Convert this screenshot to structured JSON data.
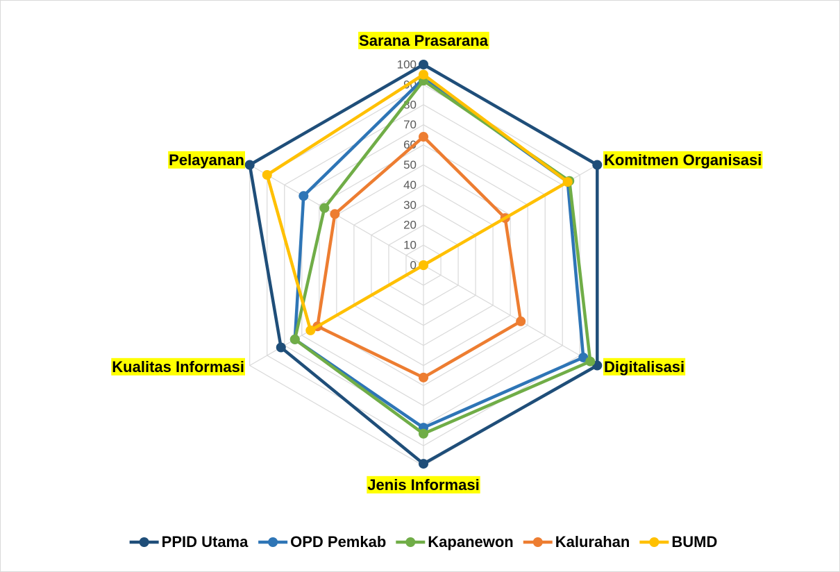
{
  "chart_data": {
    "type": "radar",
    "categories": [
      "Sarana Prasarana",
      "Komitmen Organisasi",
      "Digitalisasi",
      "Jenis Informasi",
      "Kualitas Informasi",
      "Pelayanan"
    ],
    "series": [
      {
        "name": "PPID Utama",
        "color": "#1f4e79",
        "values": [
          100,
          100,
          100,
          99,
          82,
          100
        ]
      },
      {
        "name": "OPD Pemkab",
        "color": "#2e75b6",
        "values": [
          93,
          83,
          92,
          81,
          74,
          69
        ]
      },
      {
        "name": "Kapanewon",
        "color": "#70ad47",
        "values": [
          92,
          84,
          96,
          84,
          74,
          57
        ]
      },
      {
        "name": "Kalurahan",
        "color": "#ed7d31",
        "values": [
          64,
          47,
          56,
          56,
          61,
          51
        ]
      },
      {
        "name": "BUMD",
        "color": "#ffc000",
        "values": [
          95,
          83,
          0,
          0,
          65,
          90
        ]
      }
    ],
    "ylim": [
      0,
      100
    ],
    "yticks": [
      0,
      10,
      20,
      30,
      40,
      50,
      60,
      70,
      80,
      90,
      100
    ],
    "grid": true,
    "legend": "bottom",
    "highlight": "#ffff00"
  }
}
